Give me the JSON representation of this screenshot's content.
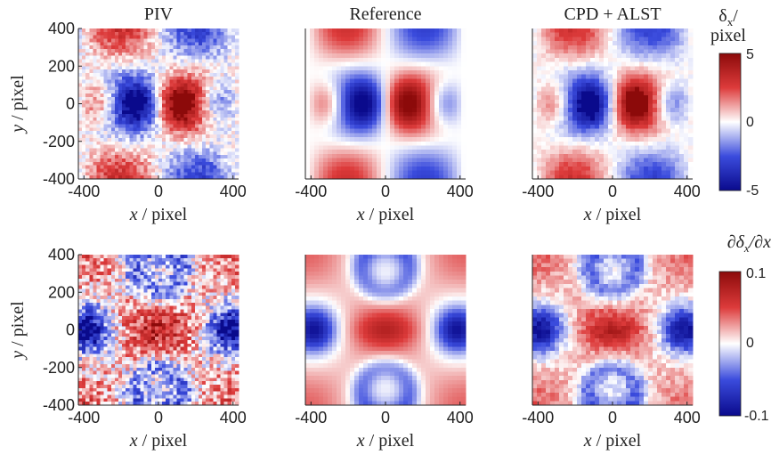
{
  "chart_data": [
    {
      "type": "heatmap",
      "title": "PIV",
      "xlabel_var": "x",
      "xlabel_unit": "/ pixel",
      "ylabel_var": "y",
      "ylabel_unit": "/ pixel",
      "xlim": [
        -430,
        430
      ],
      "ylim": [
        -400,
        400
      ],
      "xticks": [
        "-400",
        "0",
        "400"
      ],
      "yticks": [
        "400",
        "200",
        "0",
        "-200",
        "-400"
      ],
      "field": "displacement",
      "noise": 0.45,
      "saturate": true,
      "clim": [
        -5,
        5
      ]
    },
    {
      "type": "heatmap",
      "title": "Reference",
      "xlabel_var": "x",
      "xlabel_unit": "/ pixel",
      "xlim": [
        -430,
        430
      ],
      "ylim": [
        -400,
        400
      ],
      "xticks": [
        "-400",
        "0",
        "400"
      ],
      "field": "displacement",
      "noise": 0.0,
      "saturate": false,
      "clim": [
        -5,
        5
      ]
    },
    {
      "type": "heatmap",
      "title": "CPD + ALST",
      "xlabel_var": "x",
      "xlabel_unit": "/ pixel",
      "xlim": [
        -430,
        430
      ],
      "ylim": [
        -400,
        400
      ],
      "xticks": [
        "-400",
        "0",
        "400"
      ],
      "field": "displacement",
      "noise": 0.18,
      "saturate": true,
      "clim": [
        -5,
        5
      ]
    },
    {
      "type": "heatmap",
      "title": "",
      "xlabel_var": "x",
      "xlabel_unit": "/ pixel",
      "ylabel_var": "y",
      "ylabel_unit": "/ pixel",
      "xlim": [
        -430,
        430
      ],
      "ylim": [
        -400,
        400
      ],
      "xticks": [
        "-400",
        "0",
        "400"
      ],
      "yticks": [
        "400",
        "200",
        "0",
        "-200",
        "-400"
      ],
      "field": "gradient",
      "noise": 0.6,
      "saturate": true,
      "clim": [
        -0.1,
        0.1
      ]
    },
    {
      "type": "heatmap",
      "title": "",
      "xlabel_var": "x",
      "xlabel_unit": "/ pixel",
      "xlim": [
        -430,
        430
      ],
      "ylim": [
        -400,
        400
      ],
      "xticks": [
        "-400",
        "0",
        "400"
      ],
      "field": "gradient",
      "noise": 0.0,
      "saturate": false,
      "clim": [
        -0.1,
        0.1
      ]
    },
    {
      "type": "heatmap",
      "title": "",
      "xlabel_var": "x",
      "xlabel_unit": "/ pixel",
      "xlim": [
        -430,
        430
      ],
      "ylim": [
        -400,
        400
      ],
      "xticks": [
        "-400",
        "0",
        "400"
      ],
      "field": "gradient",
      "noise": 0.22,
      "saturate": false,
      "clim": [
        -0.1,
        0.1
      ]
    }
  ],
  "colorbars": [
    {
      "label": "δx/pixel",
      "ticks": [
        "5",
        "0",
        "-5"
      ],
      "range": [
        -5,
        5
      ]
    },
    {
      "label": "∂δx/∂x",
      "ticks": [
        "0.1",
        "0",
        "-0.1"
      ],
      "range": [
        -0.1,
        0.1
      ]
    }
  ],
  "colormap": {
    "low": "#0a0a8c",
    "mid": "#ffffff",
    "high": "#8c0a0a"
  }
}
